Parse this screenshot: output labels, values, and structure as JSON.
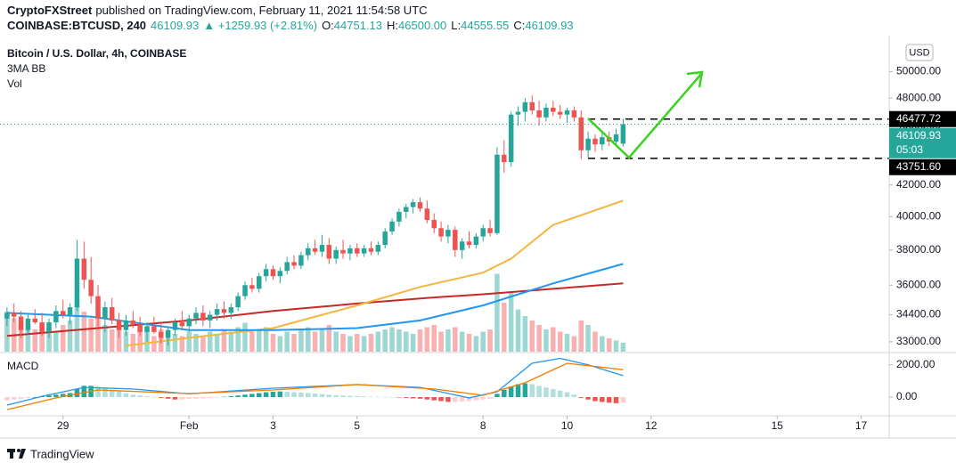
{
  "header": {
    "author": "CryptoFXStreet",
    "published": "published on TradingView.com, February 11, 2021 11:54:58 UTC",
    "symbol": "COINBASE:BTCUSD, 240",
    "last": "46109.93",
    "change": "▲ +1259.93 (+2.81%)",
    "ohlc": [
      {
        "label": "O:",
        "value": "44751.13"
      },
      {
        "label": "H:",
        "value": "46500.00"
      },
      {
        "label": "L:",
        "value": "44555.55"
      },
      {
        "label": "C:",
        "value": "46109.93"
      }
    ]
  },
  "footer": {
    "brand": "TradingView"
  },
  "chart_data": [
    {
      "type": "candlestick",
      "title": "Bitcoin / U.S. Dollar, 4h, COINBASE",
      "indicators": [
        "3MA BB",
        "Vol"
      ],
      "currency": "USD",
      "up_color": "#26a69a",
      "down_color": "#ef5350",
      "log_scale": true,
      "open": [
        34200,
        34500,
        34300,
        33600,
        34200,
        34000,
        33500,
        34000,
        34600,
        34400,
        34800,
        37500,
        36300,
        35400,
        34200,
        34800,
        34100,
        33600,
        34100,
        33900,
        33500,
        33800,
        33500,
        33200,
        33600,
        34000,
        33800,
        34200,
        34500,
        34100,
        34400,
        34700,
        34500,
        34800,
        35400,
        36000,
        35800,
        36500,
        36900,
        36500,
        36800,
        37300,
        37100,
        37700,
        38100,
        37900,
        38300,
        37500,
        38000,
        37800,
        38100,
        37800,
        38100,
        37900,
        38300,
        39100,
        39700,
        40300,
        40600,
        40900,
        40500,
        39800,
        39300,
        38800,
        39200,
        38000,
        38500,
        38300,
        38800,
        39300,
        39000,
        44000,
        43500,
        46800,
        47000,
        47700,
        47100,
        46600,
        47300,
        47000,
        46800,
        47100,
        46600,
        44300,
        45100,
        44700,
        45200,
        44900,
        44751.13
      ],
      "high": [
        34800,
        35000,
        34600,
        34400,
        34700,
        34500,
        34200,
        34900,
        35200,
        35000,
        38600,
        38500,
        37600,
        36000,
        35100,
        35300,
        34500,
        34400,
        34600,
        34300,
        34000,
        34300,
        33900,
        33800,
        34200,
        34600,
        34400,
        34800,
        34900,
        34600,
        35000,
        35100,
        35000,
        35600,
        36200,
        36400,
        36700,
        37200,
        37100,
        37000,
        37600,
        37700,
        37900,
        38400,
        38600,
        38900,
        38700,
        38200,
        38600,
        38300,
        38400,
        38300,
        38500,
        38500,
        39300,
        39900,
        40500,
        40800,
        41100,
        41200,
        41000,
        40200,
        39700,
        39500,
        39400,
        38700,
        39100,
        39000,
        39500,
        39800,
        44500,
        45000,
        47000,
        47400,
        48000,
        48200,
        47800,
        47600,
        47800,
        47500,
        47300,
        47400,
        47100,
        45600,
        45400,
        45500,
        45600,
        45800,
        46500
      ],
      "low": [
        33800,
        34000,
        33200,
        33400,
        33900,
        33300,
        33200,
        33700,
        34200,
        33900,
        34600,
        35800,
        35000,
        33800,
        33500,
        33900,
        33200,
        33300,
        33700,
        33300,
        33000,
        33400,
        32900,
        32800,
        33300,
        33600,
        33500,
        33900,
        33800,
        33700,
        34100,
        34200,
        34200,
        34600,
        35200,
        35600,
        35600,
        36200,
        36300,
        36100,
        36600,
        36900,
        36900,
        37400,
        37700,
        37600,
        37200,
        37200,
        37500,
        37400,
        37600,
        37600,
        37700,
        37700,
        38100,
        38900,
        39400,
        39900,
        40200,
        40300,
        39600,
        39000,
        38500,
        38400,
        37600,
        37500,
        38100,
        38100,
        38500,
        38800,
        38900,
        42800,
        43200,
        46000,
        46300,
        46800,
        46000,
        46300,
        46700,
        46500,
        46200,
        46300,
        43700,
        43800,
        44200,
        44300,
        44600,
        44600,
        44555.55
      ],
      "close": [
        34500,
        34300,
        33600,
        34200,
        34000,
        33500,
        34000,
        34600,
        34400,
        34800,
        37500,
        36300,
        35400,
        34200,
        34800,
        34100,
        33600,
        34100,
        33900,
        33500,
        33800,
        33500,
        33200,
        33600,
        34000,
        33800,
        34200,
        34500,
        34100,
        34400,
        34700,
        34500,
        34800,
        35400,
        36000,
        35800,
        36500,
        36900,
        36500,
        36800,
        37300,
        37100,
        37700,
        38100,
        37900,
        38300,
        37500,
        38000,
        37800,
        38100,
        37800,
        38100,
        37900,
        38300,
        39100,
        39700,
        40300,
        40600,
        40900,
        40500,
        39800,
        39300,
        38800,
        39200,
        38000,
        38500,
        38300,
        38800,
        39300,
        39000,
        44000,
        43500,
        46800,
        47000,
        47700,
        47100,
        46600,
        47300,
        47000,
        46800,
        47100,
        46600,
        44300,
        45100,
        44700,
        45200,
        44900,
        45400,
        46109.93
      ],
      "volume": [
        1800,
        1500,
        1400,
        1200,
        1000,
        1300,
        1100,
        900,
        1200,
        1400,
        2200,
        1800,
        1500,
        1600,
        1200,
        1000,
        1100,
        900,
        800,
        1000,
        900,
        700,
        1000,
        900,
        800,
        700,
        900,
        800,
        700,
        900,
        800,
        1000,
        900,
        1100,
        1300,
        900,
        1000,
        1100,
        800,
        700,
        900,
        800,
        1000,
        1100,
        900,
        1000,
        1200,
        900,
        800,
        700,
        800,
        700,
        800,
        900,
        1000,
        1100,
        1000,
        900,
        800,
        1000,
        1100,
        1200,
        900,
        1000,
        1100,
        900,
        800,
        700,
        900,
        1000,
        3500,
        2200,
        2700,
        1900,
        1600,
        1400,
        1200,
        1000,
        1100,
        900,
        800,
        700,
        1400,
        1200,
        900,
        700,
        600,
        500,
        400
      ],
      "volume_ylim": [
        0,
        4000
      ],
      "moving_averages": [
        {
          "color": "#c62828",
          "x": [
            0,
            13,
            26,
            38,
            50,
            60,
            68,
            78,
            88
          ],
          "values": [
            33300,
            33700,
            34100,
            34600,
            35000,
            35300,
            35500,
            35800,
            36100
          ]
        },
        {
          "color": "#f4b63f",
          "x": [
            17,
            26,
            38,
            50,
            59,
            68,
            72,
            78,
            88
          ],
          "values": [
            32800,
            33200,
            33700,
            34900,
            35900,
            36700,
            37500,
            39500,
            41000
          ]
        },
        {
          "color": "#2196f3",
          "x": [
            0,
            12,
            26,
            38,
            50,
            59,
            68,
            78,
            88
          ],
          "values": [
            34500,
            34300,
            33600,
            33600,
            33700,
            34100,
            34900,
            36100,
            37200
          ]
        }
      ],
      "xlim": [
        -1,
        126
      ],
      "xticks": [
        {
          "value": 8,
          "label": "29"
        },
        {
          "value": 26,
          "label": "Feb"
        },
        {
          "value": 38,
          "label": "3"
        },
        {
          "value": 50,
          "label": "5"
        },
        {
          "value": 68,
          "label": "8"
        },
        {
          "value": 80,
          "label": "10"
        },
        {
          "value": 92,
          "label": "12"
        },
        {
          "value": 110,
          "label": "15"
        },
        {
          "value": 122,
          "label": "17"
        }
      ],
      "ylim": [
        32500,
        52700
      ],
      "yticks": [
        {
          "value": 50000,
          "label": "50000.00"
        },
        {
          "value": 48000,
          "label": "48000.00"
        },
        {
          "value": 46000,
          "label": "46000.00"
        },
        {
          "value": 44000,
          "label": "44000.00"
        },
        {
          "value": 42000,
          "label": "42000.00"
        },
        {
          "value": 40000,
          "label": "40000.00"
        },
        {
          "value": 38000,
          "label": "38000.00"
        },
        {
          "value": 36000,
          "label": "36000.00"
        },
        {
          "value": 34400,
          "label": "34400.00"
        },
        {
          "value": 33000,
          "label": "33000.00"
        }
      ],
      "levels": [
        {
          "value": 46477.72,
          "label": "46477.72"
        },
        {
          "value": 43751.6,
          "label": "43751.60"
        }
      ],
      "last_price": {
        "value": 46109.93,
        "label": "46109.93",
        "countdown": "05:03"
      }
    },
    {
      "type": "macd",
      "title": "MACD",
      "histogram": [
        -200,
        -150,
        -100,
        -50,
        0,
        50,
        100,
        150,
        200,
        250,
        500,
        700,
        700,
        650,
        550,
        450,
        350,
        250,
        150,
        100,
        50,
        0,
        -50,
        -100,
        -150,
        -150,
        -120,
        -100,
        -80,
        -50,
        -20,
        20,
        60,
        100,
        150,
        200,
        250,
        300,
        330,
        350,
        330,
        300,
        280,
        250,
        220,
        180,
        150,
        120,
        100,
        80,
        60,
        40,
        30,
        20,
        10,
        0,
        -20,
        -50,
        -80,
        -100,
        -150,
        -200,
        -250,
        -300,
        -300,
        -280,
        -250,
        -200,
        -150,
        -100,
        200,
        450,
        650,
        800,
        850,
        800,
        700,
        600,
        500,
        400,
        300,
        150,
        -50,
        -150,
        -250,
        -300,
        -350,
        -380,
        -350
      ],
      "histogram_colors": [
        "#26a69a",
        "#b2dfdb",
        "#ef5350",
        "#ffcdd2"
      ],
      "macd_line": {
        "color": "#2196f3",
        "x": [
          0,
          5,
          11,
          18,
          26,
          38,
          50,
          59,
          66,
          70,
          75,
          79,
          83,
          88
        ],
        "values": [
          -500,
          50,
          600,
          500,
          200,
          550,
          780,
          600,
          -50,
          330,
          2100,
          2400,
          2000,
          1330
        ]
      },
      "signal_line": {
        "color": "#f57c00",
        "x": [
          0,
          7,
          13,
          26,
          38,
          50,
          61,
          68,
          74,
          80,
          88
        ],
        "values": [
          -780,
          -50,
          440,
          220,
          440,
          780,
          500,
          110,
          890,
          2100,
          1700
        ]
      },
      "ylim": [
        -1050,
        2650
      ],
      "yticks": [
        {
          "value": 2000,
          "label": "2000.00"
        },
        {
          "value": 0,
          "label": "0.00"
        }
      ]
    }
  ]
}
